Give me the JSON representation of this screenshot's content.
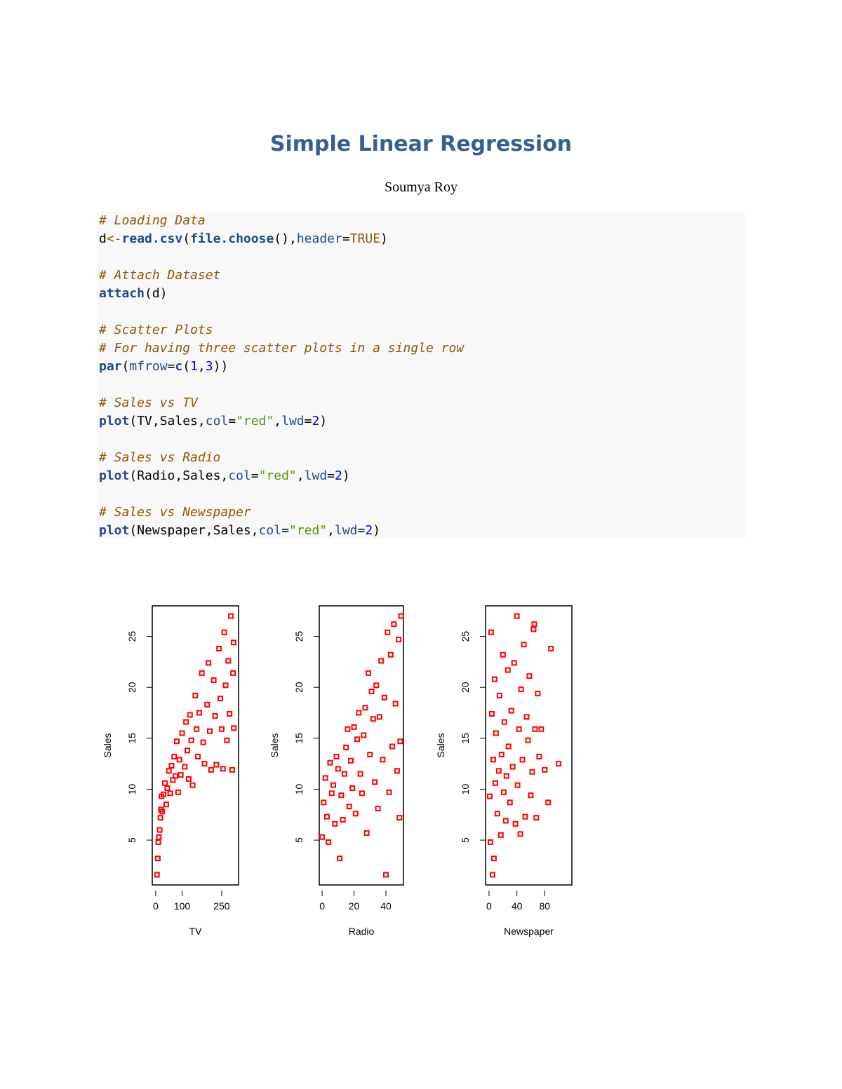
{
  "header": {
    "title": "Simple Linear Regression",
    "author": "Soumya Roy"
  },
  "code": [
    [
      [
        {
          "text": "# Loading Data",
          "color": "#8f5902",
          "italic": true
        }
      ],
      [
        {
          "text": "d",
          "color": "#000000"
        },
        {
          "text": "<-",
          "color": "#8f5902"
        },
        {
          "text": "read.csv",
          "color": "#204a87",
          "bold": true
        },
        {
          "text": "(",
          "color": "#000000"
        },
        {
          "text": "file.choose",
          "color": "#204a87",
          "bold": true
        },
        {
          "text": "(),",
          "color": "#000000"
        },
        {
          "text": "header",
          "color": "#204a87"
        },
        {
          "text": "=",
          "color": "#000000"
        },
        {
          "text": "TRUE",
          "color": "#8f5902"
        },
        {
          "text": ")",
          "color": "#000000"
        }
      ]
    ],
    [
      [
        {
          "text": "# Attach Dataset",
          "color": "#8f5902",
          "italic": true
        }
      ],
      [
        {
          "text": "attach",
          "color": "#204a87",
          "bold": true
        },
        {
          "text": "(d)",
          "color": "#000000"
        }
      ]
    ],
    [
      [
        {
          "text": "# Scatter Plots",
          "color": "#8f5902",
          "italic": true
        }
      ],
      [
        {
          "text": "# For having three scatter plots in a single row",
          "color": "#8f5902",
          "italic": true
        }
      ],
      [
        {
          "text": "par",
          "color": "#204a87",
          "bold": true
        },
        {
          "text": "(",
          "color": "#000000"
        },
        {
          "text": "mfrow",
          "color": "#204a87"
        },
        {
          "text": "=",
          "color": "#000000"
        },
        {
          "text": "c",
          "color": "#204a87",
          "bold": true
        },
        {
          "text": "(",
          "color": "#000000"
        },
        {
          "text": "1",
          "color": "#0000cf"
        },
        {
          "text": ",",
          "color": "#000000"
        },
        {
          "text": "3",
          "color": "#0000cf"
        },
        {
          "text": "))",
          "color": "#000000"
        }
      ]
    ],
    [
      [
        {
          "text": "# Sales vs TV",
          "color": "#8f5902",
          "italic": true
        }
      ],
      [
        {
          "text": "plot",
          "color": "#204a87",
          "bold": true
        },
        {
          "text": "(TV,Sales,",
          "color": "#000000"
        },
        {
          "text": "col",
          "color": "#204a87"
        },
        {
          "text": "=",
          "color": "#000000"
        },
        {
          "text": "\"red\"",
          "color": "#4e9a06"
        },
        {
          "text": ",",
          "color": "#000000"
        },
        {
          "text": "lwd",
          "color": "#204a87"
        },
        {
          "text": "=",
          "color": "#000000"
        },
        {
          "text": "2",
          "color": "#0000cf"
        },
        {
          "text": ")",
          "color": "#000000"
        }
      ]
    ],
    [
      [
        {
          "text": "# Sales vs Radio",
          "color": "#8f5902",
          "italic": true
        }
      ],
      [
        {
          "text": "plot",
          "color": "#204a87",
          "bold": true
        },
        {
          "text": "(Radio,Sales,",
          "color": "#000000"
        },
        {
          "text": "col",
          "color": "#204a87"
        },
        {
          "text": "=",
          "color": "#000000"
        },
        {
          "text": "\"red\"",
          "color": "#4e9a06"
        },
        {
          "text": ",",
          "color": "#000000"
        },
        {
          "text": "lwd",
          "color": "#204a87"
        },
        {
          "text": "=",
          "color": "#000000"
        },
        {
          "text": "2",
          "color": "#0000cf"
        },
        {
          "text": ")",
          "color": "#000000"
        }
      ]
    ],
    [
      [
        {
          "text": "# Sales vs Newspaper",
          "color": "#8f5902",
          "italic": true
        }
      ],
      [
        {
          "text": "plot",
          "color": "#204a87",
          "bold": true
        },
        {
          "text": "(Newspaper,Sales,",
          "color": "#000000"
        },
        {
          "text": "col",
          "color": "#204a87"
        },
        {
          "text": "=",
          "color": "#000000"
        },
        {
          "text": "\"red\"",
          "color": "#4e9a06"
        },
        {
          "text": ",",
          "color": "#000000"
        },
        {
          "text": "lwd",
          "color": "#204a87"
        },
        {
          "text": "=",
          "color": "#000000"
        },
        {
          "text": "2",
          "color": "#0000cf"
        },
        {
          "text": ")",
          "color": "#000000"
        }
      ]
    ]
  ],
  "chart_data": [
    {
      "type": "scatter",
      "xlabel": "TV",
      "ylabel": "Sales",
      "color": "#ff0000",
      "xlim": [
        -13,
        314
      ],
      "ylim": [
        0.6,
        28.0
      ],
      "xticks": [
        0,
        100,
        250
      ],
      "yticks": [
        5,
        10,
        15,
        20,
        25
      ],
      "x": [
        5,
        8,
        10,
        12,
        15,
        18,
        20,
        22,
        25,
        30,
        35,
        40,
        44,
        50,
        55,
        60,
        65,
        70,
        75,
        80,
        85,
        90,
        95,
        100,
        110,
        115,
        120,
        125,
        130,
        135,
        140,
        150,
        155,
        160,
        165,
        175,
        180,
        185,
        195,
        200,
        205,
        210,
        220,
        225,
        230,
        240,
        245,
        250,
        255,
        260,
        265,
        270,
        275,
        280,
        285,
        290,
        295,
        296,
        293
      ],
      "values": [
        1.6,
        3.2,
        4.8,
        5.3,
        6,
        7.2,
        8,
        9.3,
        7.8,
        9.5,
        10.6,
        8.5,
        10.1,
        11.8,
        9.6,
        12.3,
        10.9,
        13.2,
        11.3,
        14.7,
        9.7,
        12.9,
        11.4,
        15.5,
        12.2,
        16.6,
        13.8,
        11,
        17.3,
        14.8,
        10.4,
        19.2,
        15.9,
        13.2,
        17.5,
        21.4,
        14.6,
        12.5,
        18.3,
        22.4,
        15.7,
        11.9,
        20.7,
        17.2,
        12.4,
        23.8,
        18.9,
        15.9,
        12.0,
        25.4,
        20.2,
        14.8,
        22.6,
        17.4,
        27.0,
        11.9,
        24.4,
        16.0,
        21.4
      ]
    },
    {
      "type": "scatter",
      "xlabel": "Radio",
      "ylabel": "Sales",
      "color": "#ff0000",
      "xlim": [
        -1.8,
        51
      ],
      "ylim": [
        0.6,
        28.0
      ],
      "xticks": [
        0,
        20,
        40
      ],
      "yticks": [
        5,
        10,
        15,
        20,
        25
      ],
      "x": [
        0,
        1,
        2,
        3,
        4,
        5,
        6,
        7,
        8,
        9,
        10,
        11,
        12,
        13,
        14,
        15,
        16,
        17,
        18,
        19,
        20,
        21,
        22,
        23,
        24,
        25,
        26,
        27,
        28,
        29,
        30,
        31,
        32,
        33,
        34,
        35,
        36,
        37,
        38,
        39,
        40,
        41,
        42,
        43,
        44,
        45,
        46,
        47,
        48,
        49,
        49.5,
        48.5
      ],
      "values": [
        5.3,
        8.7,
        11.1,
        7.3,
        4.8,
        12.6,
        9.6,
        10.4,
        6.6,
        13.2,
        12.0,
        3.2,
        9.4,
        7.0,
        11.5,
        14.1,
        15.9,
        8.3,
        12.8,
        10.1,
        16.1,
        7.6,
        14.9,
        17.5,
        11.5,
        9.6,
        15.3,
        18.0,
        5.7,
        21.4,
        13.4,
        19.6,
        16.9,
        10.7,
        20.2,
        8.1,
        17.1,
        22.6,
        12.9,
        19.0,
        1.6,
        25.4,
        9.7,
        23.2,
        14.2,
        26.2,
        18.4,
        11.8,
        24.7,
        14.7,
        27.0,
        7.2
      ]
    },
    {
      "type": "scatter",
      "xlabel": "Newspaper",
      "ylabel": "Sales",
      "color": "#ff0000",
      "xlim": [
        -5,
        119
      ],
      "ylim": [
        0.6,
        28.0
      ],
      "xticks": [
        0,
        40,
        80
      ],
      "yticks": [
        5,
        10,
        15,
        20,
        25
      ],
      "x": [
        1,
        2,
        3,
        4,
        5,
        6,
        7,
        8,
        9,
        10,
        12,
        14,
        15,
        17,
        18,
        20,
        21,
        22,
        24,
        25,
        27,
        28,
        30,
        32,
        34,
        36,
        38,
        40,
        41,
        43,
        45,
        46,
        48,
        50,
        52,
        54,
        56,
        58,
        60,
        62,
        64,
        66,
        68,
        70,
        72,
        75,
        80,
        85,
        89,
        100,
        65
      ],
      "values": [
        9.3,
        4.8,
        25.4,
        17.4,
        1.6,
        12.9,
        3.2,
        20.8,
        10.6,
        15.5,
        7.6,
        11.8,
        19.2,
        5.5,
        13.4,
        23.2,
        9.7,
        16.6,
        6.9,
        11.3,
        21.7,
        14.2,
        8.7,
        17.7,
        12.2,
        22.4,
        6.6,
        27.0,
        10.4,
        15.9,
        5.6,
        19.8,
        12.9,
        24.2,
        7.3,
        17.1,
        14.8,
        21.1,
        9.4,
        11.7,
        25.7,
        15.9,
        7.2,
        19.4,
        13.2,
        15.9,
        11.9,
        8.7,
        23.8,
        12.5,
        26.2
      ]
    }
  ]
}
